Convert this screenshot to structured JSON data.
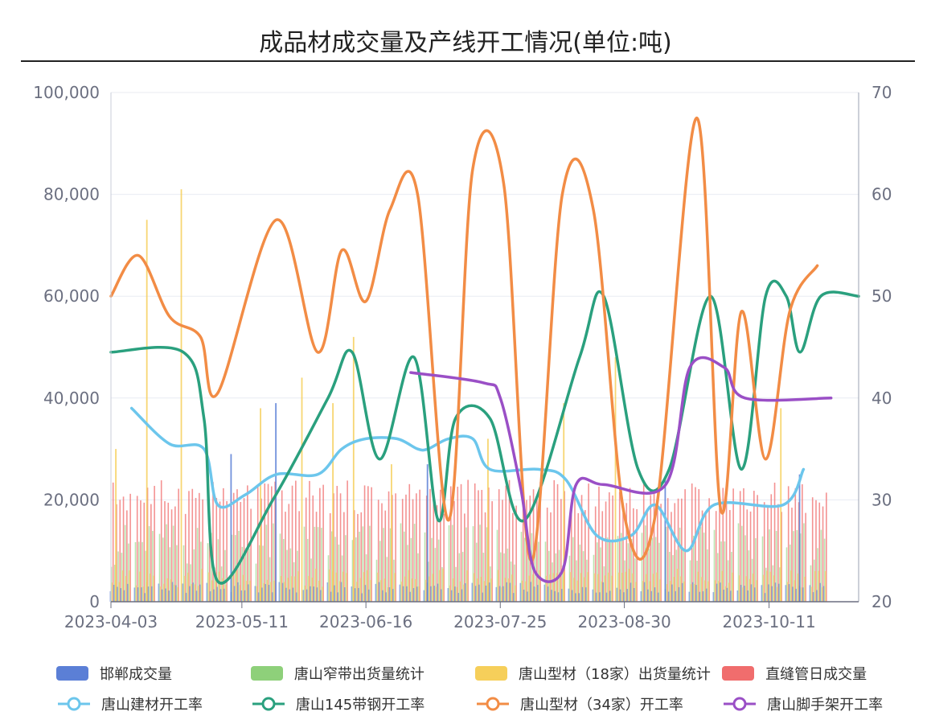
{
  "title": "成品材成交量及产线开工情况(单位:吨)",
  "chart_data": {
    "type": "bar+line",
    "title": "成品材成交量及产线开工情况(单位:吨)",
    "x_ticks": [
      "2023-04-03",
      "2023-05-11",
      "2023-06-16",
      "2023-07-25",
      "2023-08-30",
      "2023-10-11"
    ],
    "y_left": {
      "min": 0,
      "max": 100000,
      "ticks": [
        "0",
        "20,000",
        "40,000",
        "60,000",
        "80,000",
        "100,000"
      ]
    },
    "y_right": {
      "min": 20,
      "max": 70,
      "ticks": [
        "20",
        "30",
        "40",
        "50",
        "60",
        "70"
      ]
    },
    "legend_placement": "bottom",
    "bar_series": [
      {
        "name": "邯郸成交量",
        "color": "#5b7fd6",
        "typical": 3000,
        "spikes": [
          {
            "date": "2023-05-08",
            "value": 29000
          },
          {
            "date": "2023-05-21",
            "value": 39000
          },
          {
            "date": "2023-07-04",
            "value": 27000
          },
          {
            "date": "2023-09-11",
            "value": 24000
          },
          {
            "date": "2023-10-20",
            "value": 25000
          }
        ]
      },
      {
        "name": "唐山窄带出货量统计",
        "color": "#8ed07a",
        "typical": 12000
      },
      {
        "name": "唐山型材（18家）出货量统计",
        "color": "#f6cf5a",
        "typical": 5000,
        "spikes": [
          {
            "date": "2023-04-04",
            "value": 30000
          },
          {
            "date": "2023-04-13",
            "value": 75000
          },
          {
            "date": "2023-04-23",
            "value": 81000
          },
          {
            "date": "2023-05-16",
            "value": 38000
          },
          {
            "date": "2023-05-28",
            "value": 44000
          },
          {
            "date": "2023-06-06",
            "value": 39000
          },
          {
            "date": "2023-06-12",
            "value": 52000
          },
          {
            "date": "2023-06-23",
            "value": 27000
          },
          {
            "date": "2023-07-21",
            "value": 32000
          },
          {
            "date": "2023-08-12",
            "value": 39000
          },
          {
            "date": "2023-08-27",
            "value": 48000
          },
          {
            "date": "2023-10-14",
            "value": 38000
          }
        ]
      },
      {
        "name": "直缝管日成交量",
        "color": "#f06d6d",
        "typical": 21000
      }
    ],
    "line_series": [
      {
        "name": "唐山建材开工率",
        "color": "#6cc6ec",
        "axis": "right",
        "points": [
          [
            "2023-04-09",
            39
          ],
          [
            "2023-04-20",
            35.5
          ],
          [
            "2023-04-30",
            35
          ],
          [
            "2023-05-04",
            29.5
          ],
          [
            "2023-05-12",
            30.5
          ],
          [
            "2023-05-21",
            32.5
          ],
          [
            "2023-06-02",
            32.5
          ],
          [
            "2023-06-09",
            35
          ],
          [
            "2023-06-16",
            36
          ],
          [
            "2023-06-25",
            36
          ],
          [
            "2023-07-01",
            35
          ],
          [
            "2023-07-04",
            35
          ],
          [
            "2023-07-10",
            36
          ],
          [
            "2023-07-17",
            36
          ],
          [
            "2023-07-22",
            33
          ],
          [
            "2023-08-05",
            33
          ],
          [
            "2023-08-13",
            32
          ],
          [
            "2023-08-22",
            26.5
          ],
          [
            "2023-09-01",
            26.5
          ],
          [
            "2023-09-08",
            29.5
          ],
          [
            "2023-09-17",
            25
          ],
          [
            "2023-09-25",
            29.5
          ],
          [
            "2023-10-15",
            29.5
          ],
          [
            "2023-10-21",
            33
          ]
        ]
      },
      {
        "name": "唐山145带钢开工率",
        "color": "#2aa07e",
        "axis": "right",
        "points": [
          [
            "2023-04-03",
            44.5
          ],
          [
            "2023-04-24",
            44.5
          ],
          [
            "2023-04-30",
            38
          ],
          [
            "2023-05-04",
            22
          ],
          [
            "2023-05-20",
            30
          ],
          [
            "2023-06-05",
            40
          ],
          [
            "2023-06-12",
            44.5
          ],
          [
            "2023-06-20",
            34
          ],
          [
            "2023-06-30",
            44
          ],
          [
            "2023-07-07",
            28
          ],
          [
            "2023-07-12",
            38
          ],
          [
            "2023-07-22",
            38
          ],
          [
            "2023-08-01",
            28
          ],
          [
            "2023-08-17",
            44
          ],
          [
            "2023-08-24",
            50
          ],
          [
            "2023-09-03",
            33
          ],
          [
            "2023-09-12",
            33
          ],
          [
            "2023-09-24",
            50
          ],
          [
            "2023-10-03",
            33
          ],
          [
            "2023-10-10",
            50
          ],
          [
            "2023-10-16",
            50
          ],
          [
            "2023-10-20",
            44.5
          ],
          [
            "2023-10-26",
            50
          ],
          [
            "2023-11-06",
            50
          ]
        ]
      },
      {
        "name": "唐山型材（34家）开工率",
        "color": "#f28c45",
        "axis": "right",
        "points": [
          [
            "2023-04-03",
            50
          ],
          [
            "2023-04-11",
            54
          ],
          [
            "2023-04-20",
            48
          ],
          [
            "2023-04-29",
            46
          ],
          [
            "2023-05-04",
            40.5
          ],
          [
            "2023-05-21",
            57.5
          ],
          [
            "2023-06-02",
            44.5
          ],
          [
            "2023-06-09",
            54.5
          ],
          [
            "2023-06-16",
            49.5
          ],
          [
            "2023-06-23",
            58.5
          ],
          [
            "2023-07-01",
            60
          ],
          [
            "2023-07-10",
            28
          ],
          [
            "2023-07-17",
            62.5
          ],
          [
            "2023-07-26",
            61
          ],
          [
            "2023-08-03",
            24
          ],
          [
            "2023-08-12",
            60
          ],
          [
            "2023-08-21",
            58.5
          ],
          [
            "2023-08-30",
            28.5
          ],
          [
            "2023-09-08",
            28.5
          ],
          [
            "2023-09-20",
            67.5
          ],
          [
            "2023-09-27",
            29
          ],
          [
            "2023-10-03",
            48.5
          ],
          [
            "2023-10-10",
            34
          ],
          [
            "2023-10-17",
            48.5
          ],
          [
            "2023-10-25",
            53
          ]
        ]
      },
      {
        "name": "唐山脚手架开工率",
        "color": "#9a4fc6",
        "axis": "right",
        "points": [
          [
            "2023-06-29",
            42.5
          ],
          [
            "2023-07-20",
            41.5
          ],
          [
            "2023-07-25",
            40
          ],
          [
            "2023-07-31",
            31
          ],
          [
            "2023-08-04",
            23
          ],
          [
            "2023-08-12",
            23
          ],
          [
            "2023-08-16",
            31.5
          ],
          [
            "2023-08-24",
            31.5
          ],
          [
            "2023-09-11",
            31.5
          ],
          [
            "2023-09-18",
            43
          ],
          [
            "2023-09-28",
            43
          ],
          [
            "2023-10-04",
            40
          ],
          [
            "2023-10-29",
            40
          ]
        ]
      }
    ]
  },
  "legend": [
    {
      "label": "邯郸成交量",
      "kind": "bar",
      "color": "#5b7fd6"
    },
    {
      "label": "唐山窄带出货量统计",
      "kind": "bar",
      "color": "#8ed07a"
    },
    {
      "label": "唐山型材（18家）出货量统计",
      "kind": "bar",
      "color": "#f6cf5a"
    },
    {
      "label": "直缝管日成交量",
      "kind": "bar",
      "color": "#f06d6d"
    },
    {
      "label": "唐山建材开工率",
      "kind": "line",
      "color": "#6cc6ec"
    },
    {
      "label": "唐山145带钢开工率",
      "kind": "line",
      "color": "#2aa07e"
    },
    {
      "label": "唐山型材（34家）开工率",
      "kind": "line",
      "color": "#f28c45"
    },
    {
      "label": "唐山脚手架开工率",
      "kind": "line",
      "color": "#9a4fc6"
    }
  ]
}
